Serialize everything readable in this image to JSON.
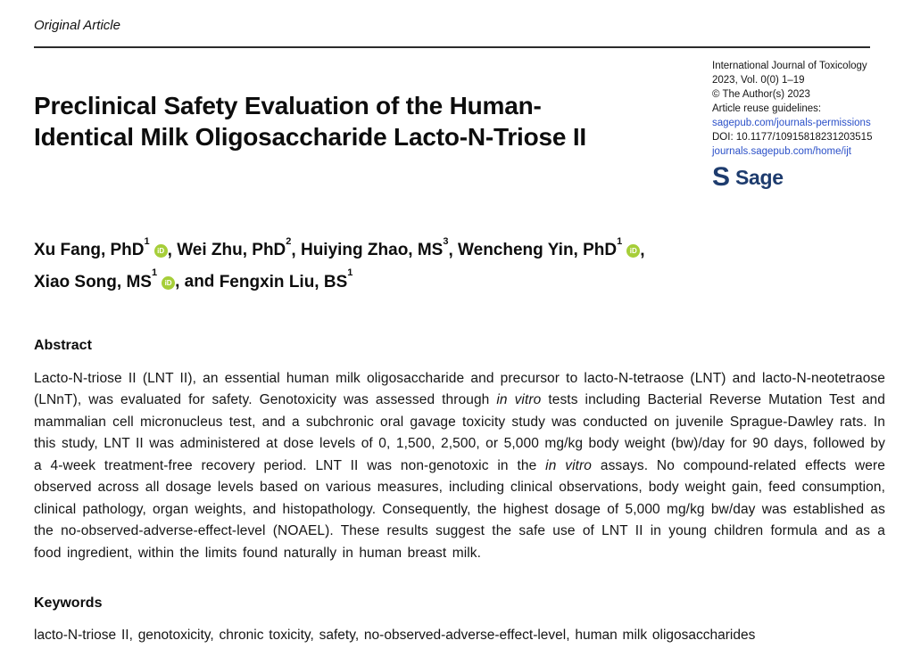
{
  "page": {
    "article_type": "Original Article",
    "title": "Preclinical Safety Evaluation of the Human-Identical Milk Oligosaccharide Lacto-N-Triose II"
  },
  "journal_info": {
    "journal_name": "International Journal of Toxicology",
    "volume_issue": "2023, Vol. 0(0) 1–19",
    "copyright": "© The Author(s) 2023",
    "reuse_label": "Article reuse guidelines:",
    "permissions_link": "sagepub.com/journals-permissions",
    "doi": "DOI: 10.1177/10915818231203515",
    "home_link": "journals.sagepub.com/home/ijt",
    "publisher_name": "Sage",
    "logo_glyph": "S"
  },
  "authors": {
    "orcid_label": "iD",
    "list": [
      {
        "name": "Xu Fang, PhD",
        "sup": "1",
        "orcid": true,
        "sep": ", "
      },
      {
        "name": "Wei Zhu, PhD",
        "sup": "2",
        "orcid": false,
        "sep": ", "
      },
      {
        "name": "Huiying Zhao, MS",
        "sup": "3",
        "orcid": false,
        "sep": ", "
      },
      {
        "name": "Wencheng Yin, PhD",
        "sup": "1",
        "orcid": true,
        "sep": ", ",
        "break_after": true
      },
      {
        "name": "Xiao Song, MS",
        "sup": "1",
        "orcid": true,
        "sep": ", and "
      },
      {
        "name": "Fengxin Liu, BS",
        "sup": "1",
        "orcid": false,
        "sep": ""
      }
    ]
  },
  "abstract": {
    "heading": "Abstract",
    "segments": [
      {
        "text": "Lacto-N-triose II (LNT II), an essential human milk oligosaccharide and precursor to lacto-N-tetraose (LNT) and lacto-N-neotetraose (LNnT), was evaluated for safety. Genotoxicity was assessed through "
      },
      {
        "text": "in vitro",
        "italic": true
      },
      {
        "text": " tests including Bacterial Reverse Mutation Test and mammalian cell micronucleus test, and a subchronic oral gavage toxicity study was conducted on juvenile Sprague-Dawley rats. In this study, LNT II was administered at dose levels of 0, 1,500, 2,500, or 5,000 mg/kg body weight (bw)/day for 90 days, followed by a 4-week treatment-free recovery period. LNT II was non-genotoxic in the "
      },
      {
        "text": "in vitro",
        "italic": true
      },
      {
        "text": " assays. No compound-related effects were observed across all dosage levels based on various measures, including clinical observations, body weight gain, feed consumption, clinical pathology, organ weights, and histopathology. Consequently, the highest dosage of 5,000 mg/kg bw/day was established as the no-observed-adverse-effect-level (NOAEL). These results suggest the safe use of LNT II in young children formula and as a food ingredient, within the limits found naturally in human breast milk."
      }
    ]
  },
  "keywords": {
    "heading": "Keywords",
    "text": "lacto-N-triose II, genotoxicity, chronic toxicity, safety, no-observed-adverse-effect-level, human milk oligosaccharides"
  },
  "colors": {
    "link_blue": "#2b50c8",
    "sage_navy": "#1e3c6e",
    "orcid_green": "#a6ce39",
    "text_black": "#1a1a1a"
  }
}
